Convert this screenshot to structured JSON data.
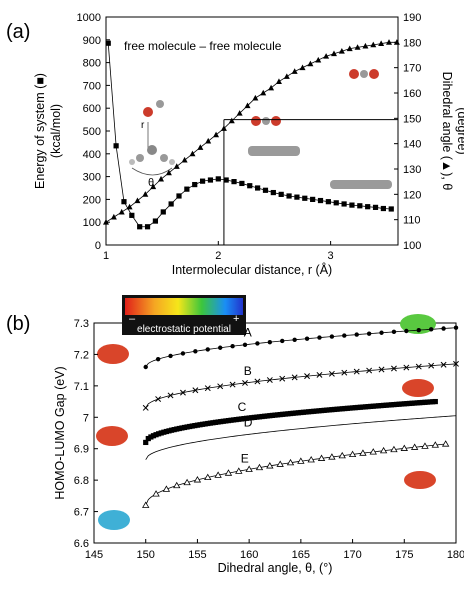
{
  "chart_data": [
    {
      "panel_label": "(a)",
      "type": "scatter",
      "annotation": "free molecule – free molecule",
      "xlabel": "Intermolecular distance, r (Å)",
      "ylabel_left": [
        "Energy of system (■)",
        "(kcal/mol)"
      ],
      "ylabel_right": [
        "Dihedral angle (▲), θ",
        "(degree)"
      ],
      "xlim": [
        1,
        3.6
      ],
      "ylim_left": [
        0,
        1000
      ],
      "ylim_right": [
        100,
        190
      ],
      "xticks": [
        "1",
        "2",
        "3"
      ],
      "yticks_left": [
        "0",
        "100",
        "200",
        "300",
        "400",
        "500",
        "600",
        "700",
        "800",
        "900",
        "1000"
      ],
      "yticks_right": [
        "100",
        "110",
        "120",
        "130",
        "140",
        "150",
        "160",
        "170",
        "180",
        "190"
      ],
      "inset_labels": [
        "r",
        "θ"
      ],
      "series": [
        {
          "marker": "square",
          "axis": "left",
          "x": [
            1.02,
            1.09,
            1.16,
            1.23,
            1.3,
            1.37,
            1.44,
            1.51,
            1.58,
            1.65,
            1.72,
            1.79,
            1.86,
            1.93,
            2.0,
            2.07,
            2.14,
            2.21,
            2.28,
            2.35,
            2.42,
            2.49,
            2.56,
            2.63,
            2.7,
            2.77,
            2.84,
            2.91,
            2.98,
            3.05,
            3.12,
            3.19,
            3.26,
            3.33,
            3.4,
            3.47,
            3.54
          ],
          "y": [
            885,
            435,
            190,
            130,
            80,
            80,
            105,
            145,
            180,
            215,
            245,
            265,
            280,
            285,
            290,
            285,
            278,
            270,
            260,
            250,
            240,
            230,
            222,
            215,
            210,
            205,
            200,
            195,
            190,
            185,
            180,
            175,
            172,
            168,
            165,
            160,
            158
          ]
        },
        {
          "marker": "triangle",
          "axis": "right",
          "x": [
            1.0,
            1.07,
            1.14,
            1.21,
            1.28,
            1.35,
            1.42,
            1.49,
            1.56,
            1.63,
            1.7,
            1.77,
            1.84,
            1.91,
            1.98,
            2.05,
            2.12,
            2.19,
            2.26,
            2.33,
            2.4,
            2.47,
            2.54,
            2.61,
            2.68,
            2.75,
            2.82,
            2.89,
            2.96,
            3.03,
            3.1,
            3.17,
            3.24,
            3.31,
            3.38,
            3.45,
            3.52,
            3.59
          ],
          "y": [
            109,
            111,
            113,
            115,
            117.5,
            120,
            123,
            126,
            128.5,
            131,
            133.5,
            136,
            138.5,
            141,
            143.5,
            146,
            149,
            152,
            155,
            158,
            160,
            162,
            164.5,
            166.5,
            168.5,
            170,
            171.5,
            173,
            174.5,
            175.5,
            176.5,
            177.5,
            178,
            178.5,
            179,
            179.5,
            180,
            180
          ]
        }
      ],
      "reference_lines": [
        {
          "orientation": "vertical",
          "x": 2.05,
          "y_from": 0,
          "y_to": 550
        },
        {
          "orientation": "horizontal",
          "y": 550,
          "x_from": 2.05,
          "x_to": 3.6
        }
      ]
    },
    {
      "panel_label": "(b)",
      "type": "scatter",
      "xlabel": "Dihedral angle, θ, (°)",
      "ylabel": "HOMO-LUMO Gap (eV)",
      "xlim": [
        145,
        180
      ],
      "ylim": [
        6.6,
        7.3
      ],
      "xticks": [
        "145",
        "150",
        "155",
        "160",
        "165",
        "170",
        "175",
        "180"
      ],
      "yticks": [
        "6.6",
        "6.7",
        "6.8",
        "6.9",
        "7",
        "7.1",
        "7.2",
        "7.3"
      ],
      "colorbar": {
        "label": "electrostatic potential",
        "min_label": "–",
        "max_label": "+"
      },
      "series": [
        {
          "name": "A",
          "marker": "dot",
          "x_range": [
            150,
            180
          ],
          "y_start": 7.16,
          "y_end": 7.285
        },
        {
          "name": "B",
          "marker": "cross",
          "x_range": [
            150,
            180
          ],
          "y_start": 7.03,
          "y_end": 7.17
        },
        {
          "name": "C",
          "marker": "square",
          "x_range": [
            150,
            178
          ],
          "y_start": 6.92,
          "y_end": 7.05
        },
        {
          "name": "D",
          "marker": "line",
          "x_range": [
            150,
            180
          ],
          "y_start": 6.865,
          "y_end": 7.005
        },
        {
          "name": "E",
          "marker": "triangle",
          "x_range": [
            150,
            179
          ],
          "y_start": 6.72,
          "y_end": 6.915
        }
      ]
    }
  ]
}
